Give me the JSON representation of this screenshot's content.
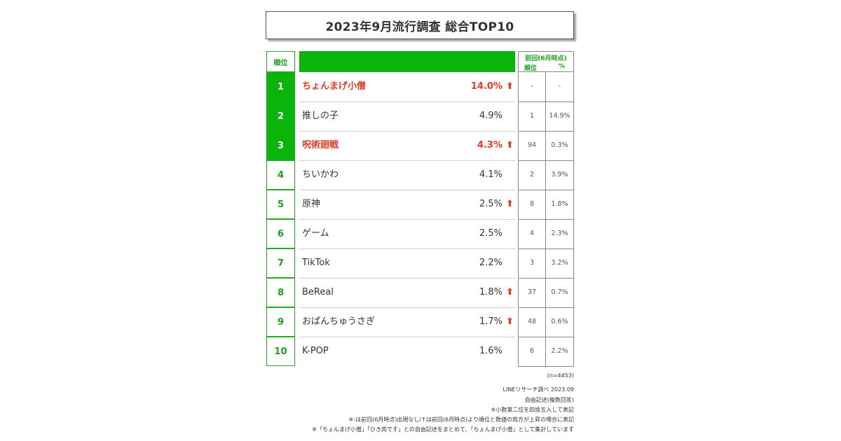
{
  "title": "2023年9月流行調査 総合TOP10",
  "table": {
    "rank_header": "順位",
    "prev_header": "前回(6月時点)",
    "prev_rank_header": "順位",
    "prev_pct_header": "%"
  },
  "colors": {
    "accent_green": "#0bb40b",
    "highlight_red": "#ea3a1e"
  },
  "chart_data": {
    "type": "table",
    "title": "2023年9月流行調査 総合TOP10",
    "columns": [
      "順位",
      "",
      "",
      "前回(6月時点) 順位",
      "前回(6月時点) %"
    ],
    "rows": [
      {
        "rank": "1",
        "name": "ちょんまげ小僧",
        "pct": "14.0%",
        "up": true,
        "highlight": true,
        "prev_rank": "-",
        "prev_pct": "-"
      },
      {
        "rank": "2",
        "name": "推しの子",
        "pct": "4.9%",
        "up": false,
        "highlight": false,
        "prev_rank": "1",
        "prev_pct": "14.9%"
      },
      {
        "rank": "3",
        "name": "呪術廻戦",
        "pct": "4.3%",
        "up": true,
        "highlight": true,
        "prev_rank": "94",
        "prev_pct": "0.3%"
      },
      {
        "rank": "4",
        "name": "ちいかわ",
        "pct": "4.1%",
        "up": false,
        "highlight": false,
        "prev_rank": "2",
        "prev_pct": "3.9%"
      },
      {
        "rank": "5",
        "name": "原神",
        "pct": "2.5%",
        "up": true,
        "highlight": false,
        "prev_rank": "8",
        "prev_pct": "1.8%"
      },
      {
        "rank": "6",
        "name": "ゲーム",
        "pct": "2.5%",
        "up": false,
        "highlight": false,
        "prev_rank": "4",
        "prev_pct": "2.3%"
      },
      {
        "rank": "7",
        "name": "TikTok",
        "pct": "2.2%",
        "up": false,
        "highlight": false,
        "prev_rank": "3",
        "prev_pct": "3.2%"
      },
      {
        "rank": "8",
        "name": "BeReal",
        "pct": "1.8%",
        "up": true,
        "highlight": false,
        "prev_rank": "37",
        "prev_pct": "0.7%"
      },
      {
        "rank": "9",
        "name": "おぱんちゅうさぎ",
        "pct": "1.7%",
        "up": true,
        "highlight": false,
        "prev_rank": "48",
        "prev_pct": "0.6%"
      },
      {
        "rank": "10",
        "name": "K-POP",
        "pct": "1.6%",
        "up": false,
        "highlight": false,
        "prev_rank": "6",
        "prev_pct": "2.2%"
      }
    ]
  },
  "up_arrow_glyph": "⬆",
  "notes": {
    "n": "(n=4453)",
    "source": "LINEリサーチ調べ 2023.09",
    "method": "自由記述(複数回答)",
    "rounding": "※小数第二位を四捨五入して表記",
    "legend": "※-は前回(6月時点)出現なし/↑は前回(6月時点)より順位と数値の両方が上昇の場合に表記",
    "grouping": "※「ちょんまげ小僧」「ひき肉です」との自由記述をまとめて、「ちょんまげ小僧」として集計しています"
  }
}
